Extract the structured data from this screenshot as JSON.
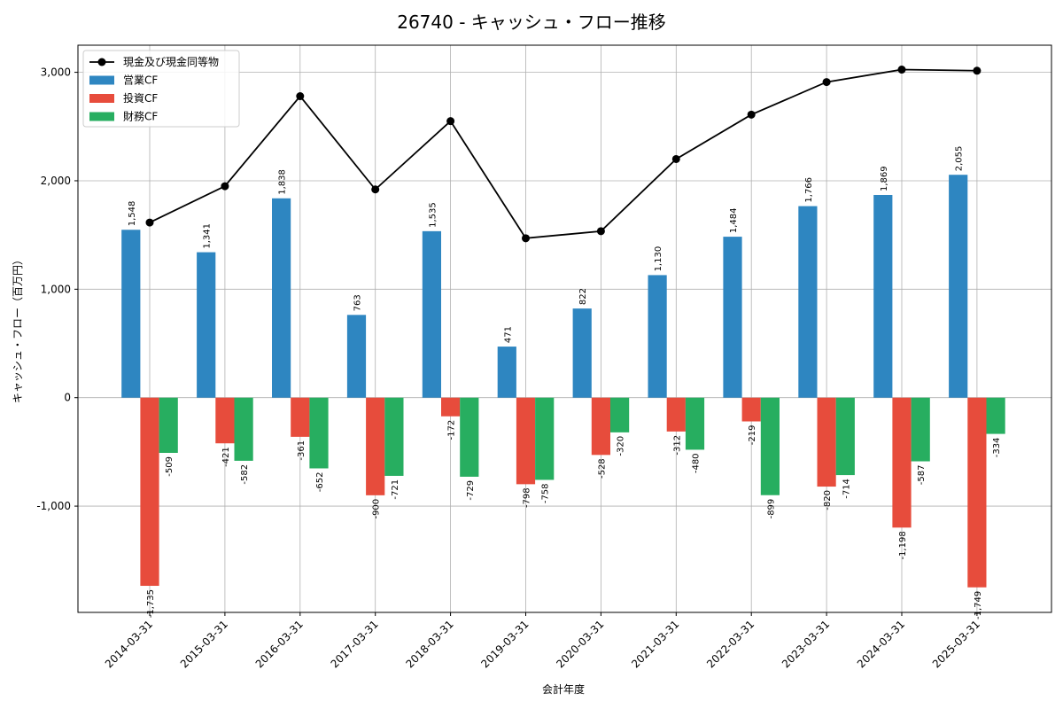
{
  "chart_data": {
    "type": "bar",
    "title": "26740 - キャッシュ・フロー推移",
    "xlabel": "会計年度",
    "ylabel": "キャッシュ・フロー（百万円）",
    "ylim": [
      -1980,
      3250
    ],
    "yticks": [
      -1000,
      0,
      1000,
      2000,
      3000
    ],
    "ytick_labels": [
      "-1,000",
      "0",
      "1,000",
      "2,000",
      "3,000"
    ],
    "grid": true,
    "legend_position": "top-left",
    "categories": [
      "2014-03-31",
      "2015-03-31",
      "2016-03-31",
      "2017-03-31",
      "2018-03-31",
      "2019-03-31",
      "2020-03-31",
      "2021-03-31",
      "2022-03-31",
      "2023-03-31",
      "2024-03-31",
      "2025-03-31"
    ],
    "series": [
      {
        "name": "営業CF",
        "kind": "bar",
        "color": "#2e86c1",
        "values": [
          1548,
          1341,
          1838,
          763,
          1535,
          471,
          822,
          1130,
          1484,
          1766,
          1869,
          2055
        ],
        "labels": [
          "1,548",
          "1,341",
          "1,838",
          "763",
          "1,535",
          "471",
          "822",
          "1,130",
          "1,484",
          "1,766",
          "1,869",
          "2,055"
        ]
      },
      {
        "name": "投資CF",
        "kind": "bar",
        "color": "#e74c3c",
        "values": [
          -1735,
          -421,
          -361,
          -900,
          -172,
          -798,
          -528,
          -312,
          -219,
          -820,
          -1198,
          -1749
        ],
        "labels": [
          "-1,735",
          "-421",
          "-361",
          "-900",
          "-172",
          "-798",
          "-528",
          "-312",
          "-219",
          "-820",
          "-1,198",
          "-1,749"
        ]
      },
      {
        "name": "財務CF",
        "kind": "bar",
        "color": "#27ae60",
        "values": [
          -509,
          -582,
          -652,
          -721,
          -729,
          -758,
          -320,
          -480,
          -899,
          -714,
          -587,
          -334
        ],
        "labels": [
          "-509",
          "-582",
          "-652",
          "-721",
          "-729",
          "-758",
          "-320",
          "-480",
          "-899",
          "-714",
          "-587",
          "-334"
        ]
      },
      {
        "name": "現金及び現金同等物",
        "kind": "line",
        "color": "#000000",
        "values": [
          1615,
          1950,
          2780,
          1920,
          2550,
          1470,
          1535,
          2200,
          2610,
          2910,
          3025,
          3015
        ]
      }
    ]
  }
}
